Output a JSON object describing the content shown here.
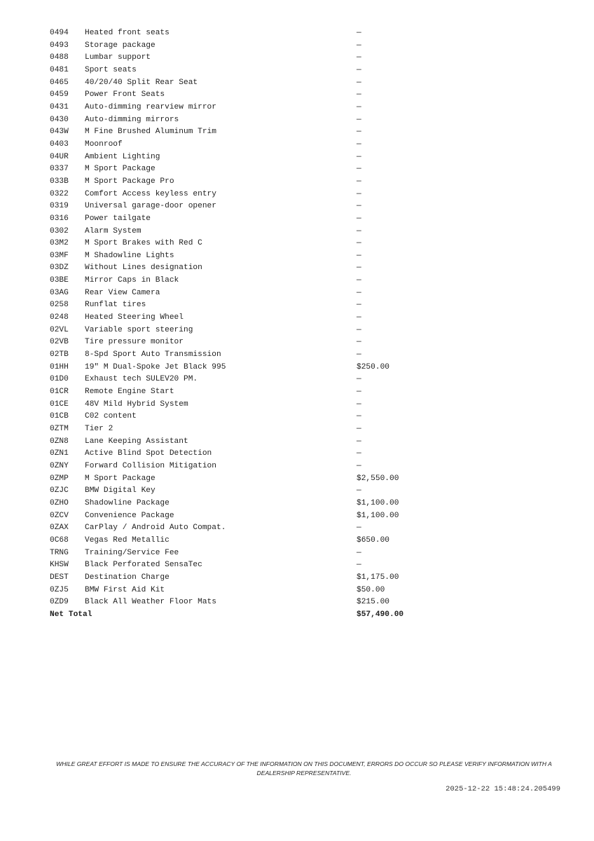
{
  "items": [
    {
      "code": "0494",
      "description": "Heated front seats",
      "price": "—"
    },
    {
      "code": "0493",
      "description": "Storage package",
      "price": "—"
    },
    {
      "code": "0488",
      "description": "Lumbar support",
      "price": "—"
    },
    {
      "code": "0481",
      "description": "Sport seats",
      "price": "—"
    },
    {
      "code": "0465",
      "description": "40/20/40 Split Rear Seat",
      "price": "—"
    },
    {
      "code": "0459",
      "description": "Power Front Seats",
      "price": "—"
    },
    {
      "code": "0431",
      "description": "Auto-dimming rearview mirror",
      "price": "—"
    },
    {
      "code": "0430",
      "description": "Auto-dimming mirrors",
      "price": "—"
    },
    {
      "code": "043W",
      "description": "M Fine Brushed Aluminum Trim",
      "price": "—"
    },
    {
      "code": "0403",
      "description": "Moonroof",
      "price": "—"
    },
    {
      "code": "04UR",
      "description": "Ambient Lighting",
      "price": "—"
    },
    {
      "code": "0337",
      "description": "M Sport Package",
      "price": "—"
    },
    {
      "code": "033B",
      "description": "M Sport Package Pro",
      "price": "—"
    },
    {
      "code": "0322",
      "description": "Comfort Access keyless entry",
      "price": "—"
    },
    {
      "code": "0319",
      "description": "Universal garage-door opener",
      "price": "—"
    },
    {
      "code": "0316",
      "description": "Power tailgate",
      "price": "—"
    },
    {
      "code": "0302",
      "description": "Alarm System",
      "price": "—"
    },
    {
      "code": "03M2",
      "description": "M Sport Brakes with Red C",
      "price": "—"
    },
    {
      "code": "03MF",
      "description": "M Shadowline Lights",
      "price": "—"
    },
    {
      "code": "03DZ",
      "description": "Without Lines designation",
      "price": "—"
    },
    {
      "code": "03BE",
      "description": "Mirror Caps in Black",
      "price": "—"
    },
    {
      "code": "03AG",
      "description": "Rear View Camera",
      "price": "—"
    },
    {
      "code": "0258",
      "description": "Runflat tires",
      "price": "—"
    },
    {
      "code": "0248",
      "description": "Heated Steering Wheel",
      "price": "—"
    },
    {
      "code": "02VL",
      "description": "Variable sport steering",
      "price": "—"
    },
    {
      "code": "02VB",
      "description": "Tire pressure monitor",
      "price": "—"
    },
    {
      "code": "02TB",
      "description": "8-Spd Sport Auto Transmission",
      "price": "—"
    },
    {
      "code": "01HH",
      "description": "19\" M Dual-Spoke Jet Black 995",
      "price": "$250.00"
    },
    {
      "code": "01D0",
      "description": "Exhaust tech SULEV20 PM.",
      "price": "—"
    },
    {
      "code": "01CR",
      "description": "Remote Engine Start",
      "price": "—"
    },
    {
      "code": "01CE",
      "description": "48V Mild Hybrid System",
      "price": "—"
    },
    {
      "code": "01CB",
      "description": "C02 content",
      "price": "—"
    },
    {
      "code": "0ZTM",
      "description": "Tier 2",
      "price": "—"
    },
    {
      "code": "0ZN8",
      "description": "Lane Keeping Assistant",
      "price": "—"
    },
    {
      "code": "0ZN1",
      "description": "Active Blind Spot Detection",
      "price": "—"
    },
    {
      "code": "0ZNY",
      "description": "Forward Collision Mitigation",
      "price": "—"
    },
    {
      "code": "0ZMP",
      "description": "M Sport Package",
      "price": "$2,550.00"
    },
    {
      "code": "0ZJC",
      "description": "BMW Digital Key",
      "price": "—"
    },
    {
      "code": "0ZHO",
      "description": "Shadowline Package",
      "price": "$1,100.00"
    },
    {
      "code": "0ZCV",
      "description": "Convenience Package",
      "price": "$1,100.00"
    },
    {
      "code": "0ZAX",
      "description": "CarPlay / Android Auto Compat.",
      "price": "—"
    },
    {
      "code": "0C68",
      "description": "Vegas Red Metallic",
      "price": "$650.00"
    },
    {
      "code": "TRNG",
      "description": "Training/Service Fee",
      "price": "—"
    },
    {
      "code": "KHSW",
      "description": "Black Perforated SensaTec",
      "price": "—"
    },
    {
      "code": "DEST",
      "description": "Destination Charge",
      "price": "$1,175.00"
    },
    {
      "code": "0ZJ5",
      "description": "BMW First Aid Kit",
      "price": "$50.00"
    },
    {
      "code": "0ZD9",
      "description": "Black All Weather Floor Mats",
      "price": "$215.00"
    }
  ],
  "total": {
    "label": "Net Total",
    "value": "$57,490.00"
  },
  "footer": {
    "disclaimer_line1": "WHILE GREAT EFFORT IS MADE TO ENSURE THE ACCURACY OF THE INFORMATION ON THIS DOCUMENT, ERRORS DO OCCUR SO PLEASE VERIFY INFORMATION WITH A",
    "disclaimer_line2": "DEALERSHIP REPRESENTATIVE.",
    "timestamp": "2025-12-22 15:48:24.205499"
  }
}
